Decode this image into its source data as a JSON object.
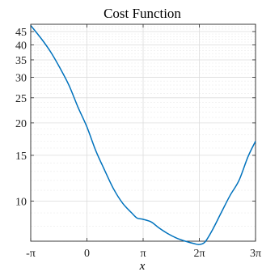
{
  "chart_data": {
    "type": "line",
    "title": "Cost Function",
    "xlabel": "x",
    "ylabel": "",
    "xlim": [
      -3.14159,
      9.42478
    ],
    "ylim": [
      7,
      48
    ],
    "yscale": "log",
    "grid": true,
    "minor_grid": true,
    "xticks": [
      {
        "value": -3.14159,
        "label": "-π"
      },
      {
        "value": 0,
        "label": "0"
      },
      {
        "value": 3.14159,
        "label": "π"
      },
      {
        "value": 6.28319,
        "label": "2π"
      },
      {
        "value": 9.42478,
        "label": "3π"
      }
    ],
    "yticks": [
      {
        "value": 10,
        "label": "10"
      },
      {
        "value": 15,
        "label": "15"
      },
      {
        "value": 20,
        "label": "20"
      },
      {
        "value": 25,
        "label": "25"
      },
      {
        "value": 30,
        "label": "30"
      },
      {
        "value": 35,
        "label": "35"
      },
      {
        "value": 40,
        "label": "40"
      },
      {
        "value": 45,
        "label": "45"
      }
    ],
    "series": [
      {
        "color": "#0072BD",
        "x": [
          -3.14159,
          -2.5,
          -2.0,
          -1.5,
          -1.0,
          -0.5,
          0.0,
          0.5,
          1.0,
          1.5,
          2.0,
          2.5,
          2.8,
          3.14159,
          3.6,
          4.0,
          4.5,
          5.0,
          5.5,
          6.0,
          6.28319,
          6.6,
          7.0,
          7.5,
          8.0,
          8.5,
          9.0,
          9.42478
        ],
        "y": [
          47.5,
          41.8,
          37.3,
          32.5,
          27.9,
          23.0,
          19.3,
          15.6,
          13.1,
          11.1,
          9.8,
          9.0,
          8.6,
          8.5,
          8.3,
          7.9,
          7.5,
          7.2,
          7.0,
          6.85,
          6.8,
          6.95,
          7.7,
          9.0,
          10.5,
          12.0,
          14.8,
          17.0
        ]
      }
    ]
  }
}
